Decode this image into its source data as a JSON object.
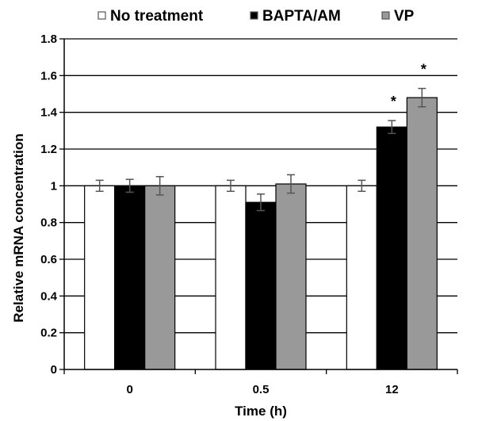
{
  "chart_data": {
    "type": "bar",
    "title": "",
    "xlabel": "Time (h)",
    "ylabel": "Relative mRNA concentration",
    "ylim": [
      0,
      1.8
    ],
    "yticks": [
      0,
      0.2,
      0.4,
      0.6,
      0.8,
      1,
      1.2,
      1.4,
      1.6,
      1.8
    ],
    "ytick_labels": [
      "0",
      "0.2",
      "0.4",
      "0.6",
      "0.8",
      "1",
      "1.2",
      "1.4",
      "1.6",
      "1.8"
    ],
    "grid": "horizontal",
    "legend_position": "top",
    "categories": [
      "0",
      "0.5",
      "12"
    ],
    "series": [
      {
        "name": "No treatment",
        "color": "#ffffff",
        "values": [
          1.0,
          1.0,
          1.0
        ],
        "errors": [
          0.03,
          0.03,
          0.03
        ]
      },
      {
        "name": "BAPTA/AM",
        "color": "#000000",
        "values": [
          1.0,
          0.91,
          1.32
        ],
        "errors": [
          0.035,
          0.045,
          0.035
        ]
      },
      {
        "name": "VP",
        "color": "#999999",
        "values": [
          1.0,
          1.01,
          1.48
        ],
        "errors": [
          0.05,
          0.05,
          0.05
        ]
      }
    ],
    "annotations": [
      {
        "text": "*",
        "category": "12",
        "series": "BAPTA/AM"
      },
      {
        "text": "*",
        "category": "12",
        "series": "VP"
      }
    ]
  }
}
